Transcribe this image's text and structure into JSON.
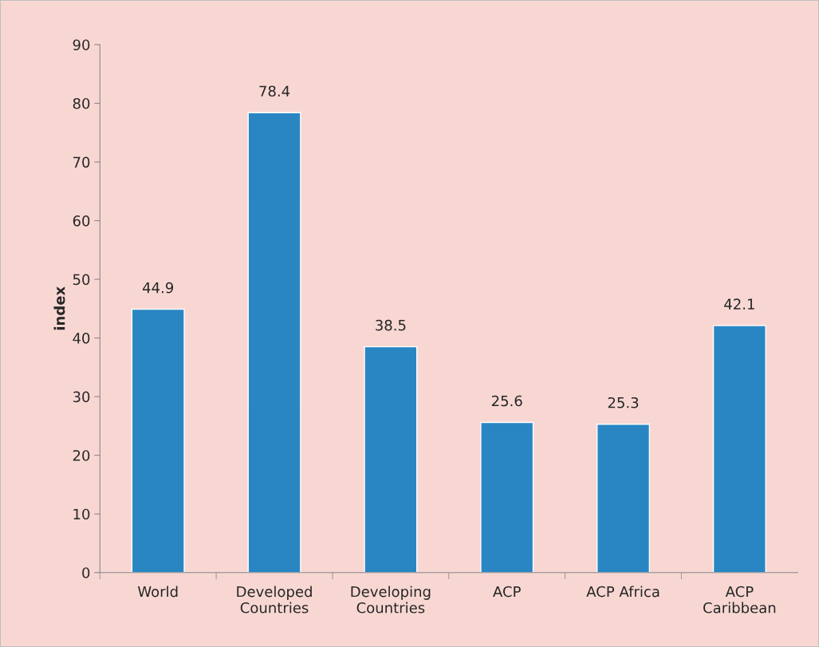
{
  "chart_data": {
    "type": "bar",
    "categories": [
      "World",
      "Developed\nCountries",
      "Developing\nCountries",
      "ACP",
      "ACP Africa",
      "ACP\nCaribbean"
    ],
    "values": [
      44.9,
      78.4,
      38.5,
      25.6,
      25.3,
      42.1
    ],
    "color": "#2a86c3",
    "ylabel": "index",
    "ylim": [
      0,
      90
    ],
    "yticks": [
      0,
      10,
      20,
      30,
      40,
      50,
      60,
      70,
      80,
      90
    ],
    "data_labels": true,
    "grid": false,
    "legend": false
  }
}
